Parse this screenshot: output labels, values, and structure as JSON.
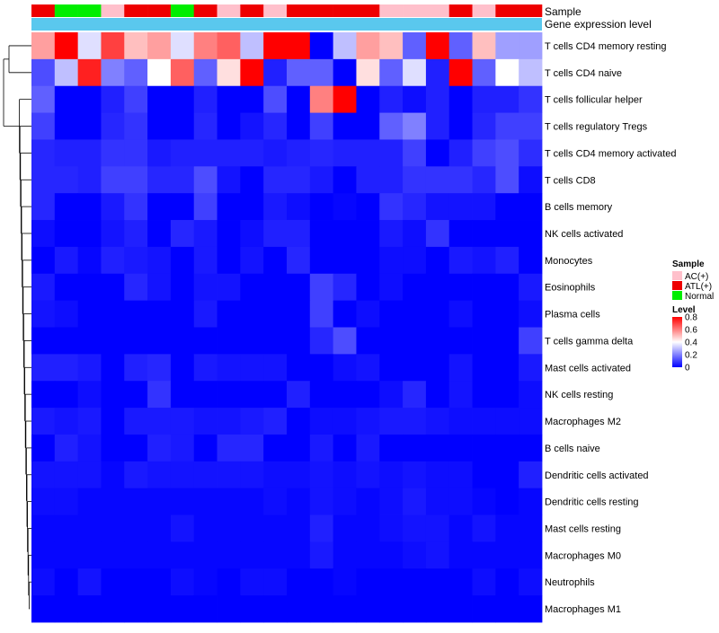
{
  "chart_data": {
    "type": "heatmap",
    "title": "",
    "annotation_rows": [
      "Sample",
      "Gene expression level"
    ],
    "sample_annotation": [
      "ATL(+)",
      "Normal",
      "Normal",
      "AC(+)",
      "ATL(+)",
      "ATL(+)",
      "Normal",
      "ATL(+)",
      "AC(+)",
      "ATL(+)",
      "AC(+)",
      "ATL(+)",
      "ATL(+)",
      "ATL(+)",
      "ATL(+)",
      "AC(+)",
      "AC(+)",
      "AC(+)",
      "ATL(+)",
      "AC(+)",
      "ATL(+)",
      "ATL(+)"
    ],
    "rows": [
      "T cells CD4 memory resting",
      "T cells CD4 naive",
      "T cells follicular helper",
      "T cells regulatory  Tregs",
      "T cells CD4 memory activated",
      "T cells CD8",
      "B cells memory",
      "NK cells activated",
      "Monocytes",
      "Eosinophils",
      "Plasma cells",
      "T cells gamma delta",
      "Mast cells activated",
      "NK cells resting",
      "Macrophages M2",
      "B cells naive",
      "Dendritic cells activated",
      "Dendritic cells resting",
      "Mast cells resting",
      "Macrophages M0",
      "Neutrophils",
      "Macrophages M1"
    ],
    "values": [
      [
        0.55,
        0.8,
        0.35,
        0.7,
        0.5,
        0.55,
        0.35,
        0.6,
        0.65,
        0.3,
        0.8,
        0.8,
        0.0,
        0.3,
        0.55,
        0.5,
        0.15,
        0.8,
        0.15,
        0.5,
        0.25,
        0.25
      ],
      [
        0.12,
        0.3,
        0.75,
        0.2,
        0.15,
        0.4,
        0.65,
        0.15,
        0.45,
        0.8,
        0.05,
        0.15,
        0.15,
        0.0,
        0.45,
        0.15,
        0.35,
        0.05,
        0.8,
        0.15,
        0.4,
        0.3
      ],
      [
        0.15,
        0.0,
        0.0,
        0.05,
        0.1,
        0.0,
        0.0,
        0.05,
        0.0,
        0.0,
        0.12,
        0.0,
        0.6,
        0.8,
        0.0,
        0.05,
        0.02,
        0.05,
        0.0,
        0.05,
        0.05,
        0.08
      ],
      [
        0.1,
        0.0,
        0.0,
        0.06,
        0.08,
        0.0,
        0.0,
        0.06,
        0.0,
        0.03,
        0.06,
        0.0,
        0.1,
        0.0,
        0.0,
        0.15,
        0.2,
        0.05,
        0.0,
        0.06,
        0.1,
        0.1
      ],
      [
        0.06,
        0.05,
        0.05,
        0.08,
        0.08,
        0.04,
        0.05,
        0.05,
        0.05,
        0.05,
        0.04,
        0.05,
        0.06,
        0.05,
        0.05,
        0.05,
        0.1,
        0.0,
        0.05,
        0.1,
        0.12,
        0.07
      ],
      [
        0.06,
        0.06,
        0.05,
        0.1,
        0.1,
        0.06,
        0.06,
        0.12,
        0.03,
        0.0,
        0.06,
        0.06,
        0.04,
        0.0,
        0.05,
        0.05,
        0.08,
        0.08,
        0.08,
        0.06,
        0.12,
        0.02
      ],
      [
        0.06,
        0.0,
        0.0,
        0.04,
        0.08,
        0.0,
        0.0,
        0.1,
        0.0,
        0.0,
        0.04,
        0.02,
        0.0,
        0.01,
        0.0,
        0.08,
        0.06,
        0.03,
        0.03,
        0.03,
        0.0,
        0.0
      ],
      [
        0.02,
        0.0,
        0.0,
        0.03,
        0.05,
        0.0,
        0.06,
        0.04,
        0.0,
        0.02,
        0.05,
        0.05,
        0.0,
        0.0,
        0.0,
        0.04,
        0.02,
        0.08,
        0.0,
        0.0,
        0.0,
        0.0
      ],
      [
        0.0,
        0.04,
        0.01,
        0.05,
        0.04,
        0.03,
        0.0,
        0.04,
        0.0,
        0.03,
        0.0,
        0.06,
        0.0,
        0.0,
        0.0,
        0.02,
        0.02,
        0.0,
        0.04,
        0.03,
        0.05,
        0.0
      ],
      [
        0.04,
        0.0,
        0.0,
        0.0,
        0.06,
        0.03,
        0.0,
        0.03,
        0.03,
        0.0,
        0.0,
        0.0,
        0.1,
        0.06,
        0.0,
        0.02,
        0.0,
        0.0,
        0.0,
        0.0,
        0.0,
        0.04
      ],
      [
        0.03,
        0.02,
        0.0,
        0.0,
        0.0,
        0.0,
        0.0,
        0.04,
        0.0,
        0.0,
        0.0,
        0.0,
        0.1,
        0.0,
        0.02,
        0.0,
        0.0,
        0.0,
        0.02,
        0.0,
        0.0,
        0.02
      ],
      [
        0.0,
        0.0,
        0.0,
        0.0,
        0.0,
        0.0,
        0.0,
        0.0,
        0.0,
        0.0,
        0.0,
        0.0,
        0.06,
        0.12,
        0.0,
        0.0,
        0.0,
        0.0,
        0.0,
        0.0,
        0.0,
        0.1
      ],
      [
        0.05,
        0.05,
        0.04,
        0.0,
        0.05,
        0.06,
        0.0,
        0.04,
        0.03,
        0.03,
        0.03,
        0.0,
        0.0,
        0.02,
        0.03,
        0.0,
        0.0,
        0.0,
        0.03,
        0.0,
        0.0,
        0.04
      ],
      [
        0.0,
        0.0,
        0.02,
        0.0,
        0.0,
        0.08,
        0.0,
        0.0,
        0.0,
        0.0,
        0.0,
        0.05,
        0.0,
        0.0,
        0.0,
        0.02,
        0.06,
        0.0,
        0.03,
        0.0,
        0.0,
        0.02
      ],
      [
        0.04,
        0.03,
        0.04,
        0.0,
        0.04,
        0.04,
        0.04,
        0.03,
        0.03,
        0.04,
        0.05,
        0.0,
        0.02,
        0.02,
        0.03,
        0.04,
        0.04,
        0.03,
        0.02,
        0.02,
        0.02,
        0.02
      ],
      [
        0.0,
        0.05,
        0.03,
        0.0,
        0.0,
        0.05,
        0.04,
        0.0,
        0.06,
        0.06,
        0.0,
        0.0,
        0.04,
        0.0,
        0.04,
        0.0,
        0.0,
        0.0,
        0.0,
        0.0,
        0.0,
        0.0
      ],
      [
        0.03,
        0.03,
        0.03,
        0.01,
        0.04,
        0.03,
        0.03,
        0.03,
        0.03,
        0.03,
        0.02,
        0.02,
        0.03,
        0.02,
        0.03,
        0.02,
        0.03,
        0.02,
        0.02,
        0.0,
        0.0,
        0.05
      ],
      [
        0.02,
        0.02,
        0.01,
        0.01,
        0.01,
        0.01,
        0.01,
        0.01,
        0.01,
        0.01,
        0.02,
        0.01,
        0.03,
        0.02,
        0.01,
        0.02,
        0.04,
        0.02,
        0.02,
        0.01,
        0.0,
        0.01
      ],
      [
        0.01,
        0.01,
        0.01,
        0.01,
        0.01,
        0.01,
        0.03,
        0.01,
        0.01,
        0.01,
        0.01,
        0.01,
        0.05,
        0.01,
        0.01,
        0.02,
        0.03,
        0.03,
        0.01,
        0.03,
        0.01,
        0.01
      ],
      [
        0.01,
        0.01,
        0.01,
        0.01,
        0.01,
        0.01,
        0.01,
        0.01,
        0.01,
        0.01,
        0.01,
        0.01,
        0.04,
        0.01,
        0.01,
        0.01,
        0.02,
        0.03,
        0.01,
        0.01,
        0.01,
        0.01
      ],
      [
        0.02,
        0.0,
        0.03,
        0.0,
        0.0,
        0.0,
        0.02,
        0.01,
        0.0,
        0.02,
        0.02,
        0.0,
        0.0,
        0.01,
        0.0,
        0.0,
        0.0,
        0.0,
        0.0,
        0.02,
        0.0,
        0.02
      ],
      [
        0.0,
        0.0,
        0.0,
        0.0,
        0.0,
        0.0,
        0.0,
        0.0,
        0.0,
        0.0,
        0.0,
        0.0,
        0.0,
        0.0,
        0.0,
        0.0,
        0.0,
        0.0,
        0.0,
        0.0,
        0.0,
        0.0
      ]
    ],
    "legend_sample": {
      "title": "Sample",
      "entries": [
        {
          "label": "AC(+)",
          "color": "#ffc0cb"
        },
        {
          "label": "ATL(+)",
          "color": "#ee0000"
        },
        {
          "label": "Normal",
          "color": "#00ee00"
        }
      ]
    },
    "legend_level": {
      "title": "Level",
      "ticks": [
        "0.8",
        "0.6",
        "0.4",
        "0.2",
        "0"
      ],
      "range": [
        0,
        0.8
      ]
    },
    "colors": {
      "low": "#0000ff",
      "mid": "#ffffff",
      "high": "#ff0000",
      "annotation_bar": "#5ac8ee"
    }
  }
}
